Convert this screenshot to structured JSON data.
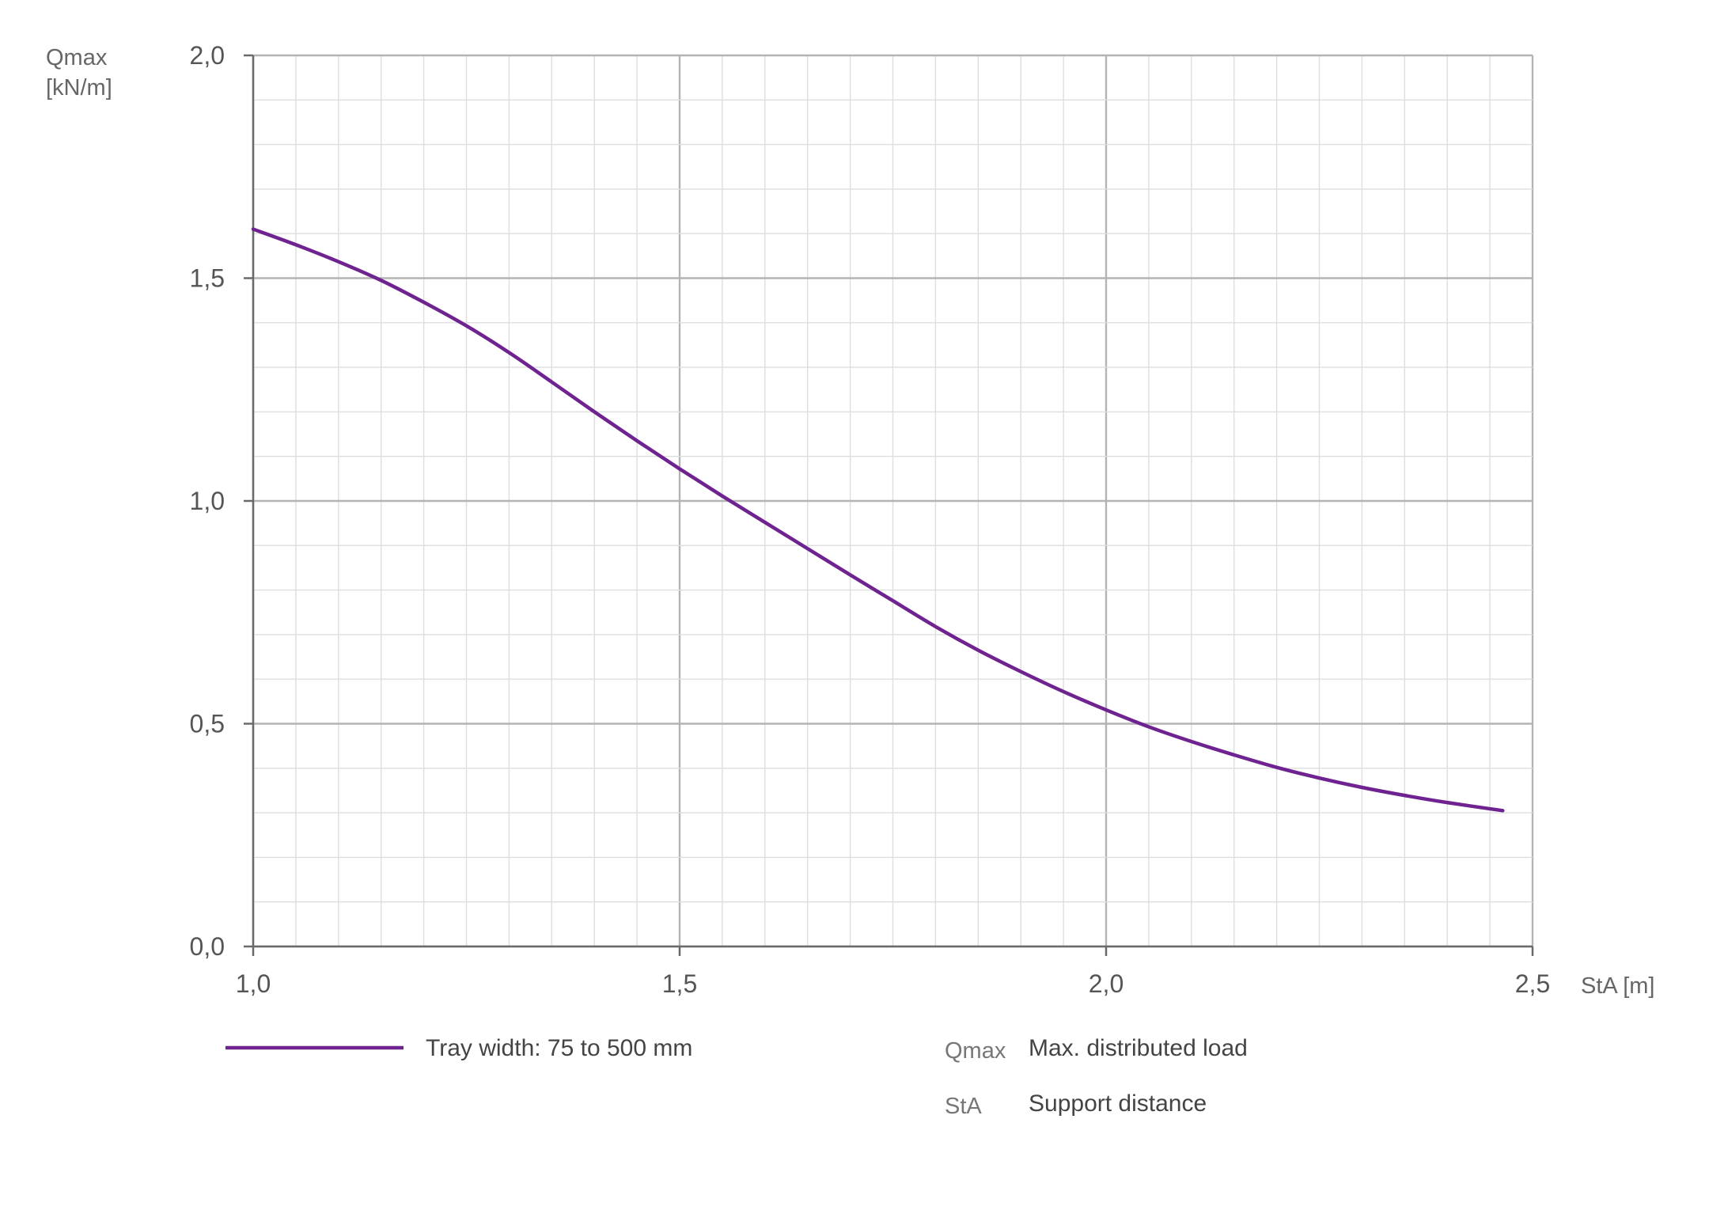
{
  "chart_data": {
    "type": "line",
    "xlabel": "StA [m]",
    "ylabel_line1": "Qmax",
    "ylabel_line2": "[kN/m]",
    "xlim": [
      1.0,
      2.5
    ],
    "ylim": [
      0.0,
      2.0
    ],
    "xticks": [
      1.0,
      1.5,
      2.0,
      2.5
    ],
    "xtick_labels": [
      "1,0",
      "1,5",
      "2,0",
      "2,5"
    ],
    "yticks": [
      0.0,
      0.5,
      1.0,
      1.5,
      2.0
    ],
    "ytick_labels": [
      "0,0",
      "0,5",
      "1,0",
      "1,5",
      "2,0"
    ],
    "grid": true,
    "x_minor_step": 0.05,
    "y_minor_step": 0.1,
    "series": [
      {
        "name": "Tray width: 75 to 500 mm",
        "color": "#6f2390",
        "x": [
          1.0,
          1.05,
          1.1,
          1.15,
          1.2,
          1.25,
          1.3,
          1.35,
          1.4,
          1.45,
          1.5,
          1.55,
          1.6,
          1.65,
          1.7,
          1.75,
          1.8,
          1.85,
          1.9,
          1.95,
          2.0,
          2.05,
          2.1,
          2.15,
          2.2,
          2.25,
          2.3,
          2.35,
          2.4,
          2.465
        ],
        "y": [
          1.61,
          1.575,
          1.537,
          1.495,
          1.446,
          1.393,
          1.333,
          1.267,
          1.2,
          1.135,
          1.072,
          1.011,
          0.952,
          0.893,
          0.834,
          0.776,
          0.718,
          0.665,
          0.617,
          0.572,
          0.531,
          0.493,
          0.46,
          0.43,
          0.402,
          0.378,
          0.357,
          0.339,
          0.323,
          0.305
        ]
      }
    ]
  },
  "legend": {
    "series_label": "Tray width: 75 to 500 mm",
    "definitions": [
      {
        "abbr": "Qmax",
        "text": "Max. distributed load"
      },
      {
        "abbr": "StA",
        "text": "Support distance"
      }
    ]
  }
}
